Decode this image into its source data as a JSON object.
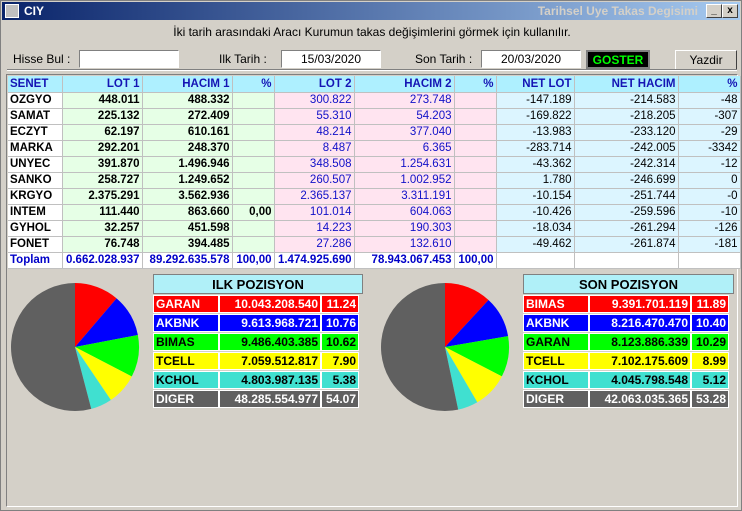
{
  "window": {
    "app_label": "CIY",
    "title": "Tarihsel Uye Takas Degisimi",
    "min_glyph": "_",
    "close_glyph": "x"
  },
  "info_text": "İki tarih arasındaki  Aracı Kurumun takas değişimlerini görmek için kullanılır.",
  "controls": {
    "hisse_label": "Hisse Bul :",
    "hisse_value": "",
    "ilk_tarih_label": "Ilk Tarih :",
    "ilk_tarih_value": "15/03/2020",
    "son_tarih_label": "Son Tarih :",
    "son_tarih_value": "20/03/2020",
    "goster_label": "GOSTER",
    "yazdir_label": "Yazdir"
  },
  "table": {
    "headers": [
      "SENET",
      "LOT 1",
      "HACIM 1",
      "%",
      "LOT 2",
      "HACIM 2",
      "%",
      "NET LOT",
      "NET HACIM",
      "%"
    ],
    "rows": [
      [
        "OZGYO",
        "448.011",
        "488.332",
        "",
        "300.822",
        "273.748",
        "",
        "-147.189",
        "-214.583",
        "-48"
      ],
      [
        "SAMAT",
        "225.132",
        "272.409",
        "",
        "55.310",
        "54.203",
        "",
        "-169.822",
        "-218.205",
        "-307"
      ],
      [
        "ECZYT",
        "62.197",
        "610.161",
        "",
        "48.214",
        "377.040",
        "",
        "-13.983",
        "-233.120",
        "-29"
      ],
      [
        "MARKA",
        "292.201",
        "248.370",
        "",
        "8.487",
        "6.365",
        "",
        "-283.714",
        "-242.005",
        "-3342"
      ],
      [
        "UNYEC",
        "391.870",
        "1.496.946",
        "",
        "348.508",
        "1.254.631",
        "",
        "-43.362",
        "-242.314",
        "-12"
      ],
      [
        "SANKO",
        "258.727",
        "1.249.652",
        "",
        "260.507",
        "1.002.952",
        "",
        "1.780",
        "-246.699",
        "0"
      ],
      [
        "KRGYO",
        "2.375.291",
        "3.562.936",
        "",
        "2.365.137",
        "3.311.191",
        "",
        "-10.154",
        "-251.744",
        "-0"
      ],
      [
        "INTEM",
        "111.440",
        "863.660",
        "0,00",
        "101.014",
        "604.063",
        "",
        "-10.426",
        "-259.596",
        "-10"
      ],
      [
        "GYHOL",
        "32.257",
        "451.598",
        "",
        "14.223",
        "190.303",
        "",
        "-18.034",
        "-261.294",
        "-126"
      ],
      [
        "FONET",
        "76.748",
        "394.485",
        "",
        "27.286",
        "132.610",
        "",
        "-49.462",
        "-261.874",
        "-181"
      ]
    ],
    "total": [
      "Toplam",
      "0.662.028.937",
      "89.292.635.578",
      "100,00",
      "1.474.925.690",
      "78.943.067.453",
      "100,00",
      "",
      "",
      ""
    ]
  },
  "ilk_pozisyon": {
    "title": "ILK POZISYON",
    "items": [
      {
        "name": "GARAN",
        "value": "10.043.208.540",
        "pct": "11.24",
        "pct_num": 11.24,
        "color": "#ff0000",
        "text": "#ffffff"
      },
      {
        "name": "AKBNK",
        "value": "9.613.968.721",
        "pct": "10.76",
        "pct_num": 10.76,
        "color": "#0000ff",
        "text": "#ffffff"
      },
      {
        "name": "BIMAS",
        "value": "9.486.403.385",
        "pct": "10.62",
        "pct_num": 10.62,
        "color": "#00ff00",
        "text": "#000000"
      },
      {
        "name": "TCELL",
        "value": "7.059.512.817",
        "pct": "7.90",
        "pct_num": 7.9,
        "color": "#ffff00",
        "text": "#000000"
      },
      {
        "name": "KCHOL",
        "value": "4.803.987.135",
        "pct": "5.38",
        "pct_num": 5.38,
        "color": "#40e0d0",
        "text": "#000000"
      },
      {
        "name": "DIGER",
        "value": "48.285.554.977",
        "pct": "54.07",
        "pct_num": 54.07,
        "color": "#606060",
        "text": "#ffffff"
      }
    ]
  },
  "son_pozisyon": {
    "title": "SON POZISYON",
    "items": [
      {
        "name": "BIMAS",
        "value": "9.391.701.119",
        "pct": "11.89",
        "pct_num": 11.89,
        "color": "#ff0000",
        "text": "#ffffff"
      },
      {
        "name": "AKBNK",
        "value": "8.216.470.470",
        "pct": "10.40",
        "pct_num": 10.4,
        "color": "#0000ff",
        "text": "#ffffff"
      },
      {
        "name": "GARAN",
        "value": "8.123.886.339",
        "pct": "10.29",
        "pct_num": 10.29,
        "color": "#00ff00",
        "text": "#000000"
      },
      {
        "name": "TCELL",
        "value": "7.102.175.609",
        "pct": "8.99",
        "pct_num": 8.99,
        "color": "#ffff00",
        "text": "#000000"
      },
      {
        "name": "KCHOL",
        "value": "4.045.798.548",
        "pct": "5.12",
        "pct_num": 5.12,
        "color": "#40e0d0",
        "text": "#000000"
      },
      {
        "name": "DIGER",
        "value": "42.063.035.365",
        "pct": "53.28",
        "pct_num": 53.28,
        "color": "#606060",
        "text": "#ffffff"
      }
    ]
  }
}
